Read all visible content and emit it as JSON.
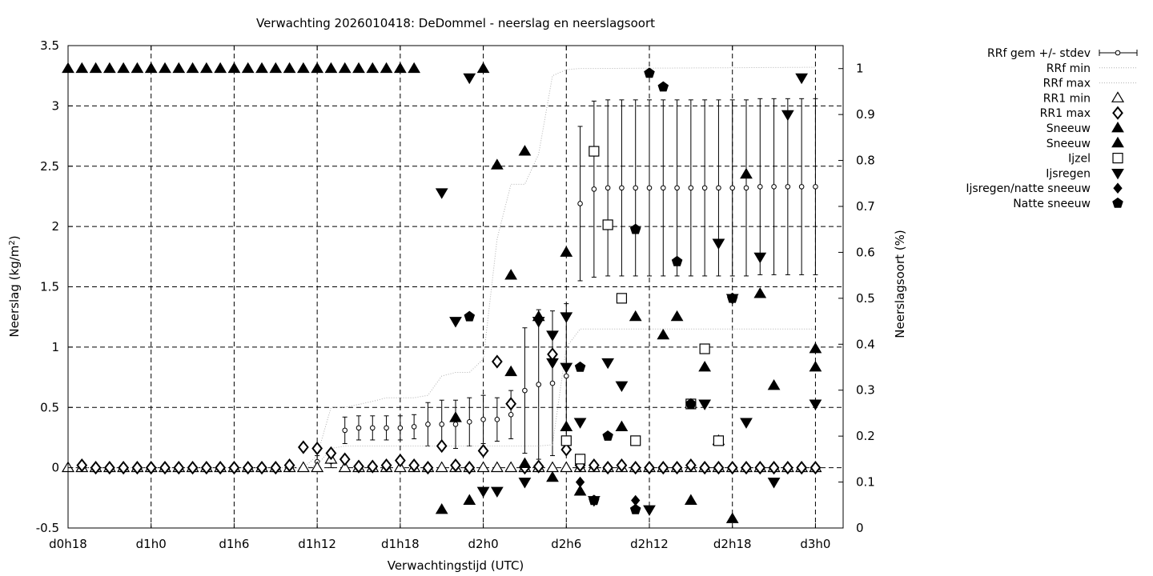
{
  "chart_data": {
    "type": "scatter",
    "title": "Verwachting 2026010418: DeDommel - neerslag en neerslagsoort",
    "xlabel": "Verwachtingstijd (UTC)",
    "ylabel": "Neerslag (kg/m",
    "ylabel_sup": "2",
    "ylabel_close": ")",
    "y2label": "Neerslagsoort (%)",
    "xlim": [
      18,
      74
    ],
    "ylim": [
      -0.5,
      3.5
    ],
    "y2lim": [
      0,
      1.05
    ],
    "grid": true,
    "legend_position": "outside-right",
    "x_ticks": [
      {
        "x": 18,
        "label": "d0h18"
      },
      {
        "x": 24,
        "label": "d1h0"
      },
      {
        "x": 30,
        "label": "d1h6"
      },
      {
        "x": 36,
        "label": "d1h12"
      },
      {
        "x": 42,
        "label": "d1h18"
      },
      {
        "x": 48,
        "label": "d2h0"
      },
      {
        "x": 54,
        "label": "d2h6"
      },
      {
        "x": 60,
        "label": "d2h12"
      },
      {
        "x": 66,
        "label": "d2h18"
      },
      {
        "x": 72,
        "label": "d3h0"
      }
    ],
    "y_ticks": [
      "-0.5",
      "0",
      "0.5",
      "1",
      "1.5",
      "2",
      "2.5",
      "3",
      "3.5"
    ],
    "y2_ticks": [
      "0",
      "0.1",
      "0.2",
      "0.3",
      "0.4",
      "0.5",
      "0.6",
      "0.7",
      "0.8",
      "0.9",
      "1"
    ],
    "series": [
      {
        "name": "RRf gem +/- stdev",
        "marker": "circle-errorbar",
        "axis": "y1",
        "x": [
          18,
          19,
          20,
          21,
          22,
          23,
          24,
          25,
          26,
          27,
          28,
          29,
          30,
          31,
          32,
          33,
          34,
          35,
          36,
          37,
          38,
          39,
          40,
          41,
          42,
          43,
          44,
          45,
          46,
          47,
          48,
          49,
          50,
          51,
          52,
          53,
          54,
          55,
          56,
          57,
          58,
          59,
          60,
          61,
          62,
          63,
          64,
          65,
          66,
          67,
          68,
          69,
          70,
          71,
          72
        ],
        "mean": [
          0,
          0,
          0,
          0,
          0,
          0,
          0,
          0,
          0,
          0,
          0,
          0,
          0,
          0,
          0,
          0,
          0,
          0,
          0.05,
          0.05,
          0.31,
          0.33,
          0.33,
          0.33,
          0.33,
          0.34,
          0.36,
          0.36,
          0.36,
          0.38,
          0.4,
          0.4,
          0.44,
          0.64,
          0.69,
          0.7,
          0.76,
          2.19,
          2.31,
          2.32,
          2.32,
          2.32,
          2.32,
          2.32,
          2.32,
          2.32,
          2.32,
          2.32,
          2.32,
          2.32,
          2.33,
          2.33,
          2.33,
          2.33,
          2.33
        ],
        "stdev": [
          0,
          0,
          0,
          0,
          0,
          0,
          0,
          0,
          0,
          0,
          0,
          0,
          0,
          0,
          0,
          0,
          0,
          0,
          0.05,
          0.05,
          0.11,
          0.1,
          0.1,
          0.1,
          0.1,
          0.1,
          0.18,
          0.2,
          0.2,
          0.2,
          0.2,
          0.18,
          0.2,
          0.52,
          0.62,
          0.6,
          0.6,
          0.64,
          0.73,
          0.73,
          0.73,
          0.73,
          0.73,
          0.73,
          0.73,
          0.73,
          0.73,
          0.73,
          0.73,
          0.73,
          0.73,
          0.73,
          0.73,
          0.73,
          0.73
        ]
      },
      {
        "name": "RRf min",
        "marker": "dotted-line",
        "axis": "y1",
        "x": [
          18,
          35,
          36,
          37,
          38,
          40,
          41,
          43,
          44,
          47,
          48,
          51,
          52,
          53,
          54,
          55,
          56,
          72
        ],
        "y": [
          0,
          0,
          0.02,
          0.16,
          0.18,
          0.18,
          0.18,
          0.18,
          0.18,
          0.18,
          0.18,
          0.18,
          0.18,
          0.19,
          1.0,
          1.15,
          1.15,
          1.15
        ]
      },
      {
        "name": "RRf max",
        "marker": "dotted-line",
        "axis": "y1",
        "x": [
          18,
          35,
          36,
          37,
          38,
          40,
          41,
          43,
          44,
          45,
          46,
          47,
          48,
          49,
          50,
          51,
          52,
          53,
          54,
          55,
          56,
          72
        ],
        "y": [
          0,
          0,
          0.1,
          0.5,
          0.5,
          0.55,
          0.58,
          0.58,
          0.6,
          0.76,
          0.79,
          0.79,
          0.9,
          1.9,
          2.35,
          2.35,
          2.6,
          3.25,
          3.3,
          3.31,
          3.31,
          3.32
        ]
      },
      {
        "name": "RR1 min",
        "marker": "open-triangle-up",
        "axis": "y1",
        "x": [
          18,
          19,
          20,
          21,
          22,
          23,
          24,
          25,
          26,
          27,
          28,
          29,
          30,
          31,
          32,
          33,
          34,
          35,
          36,
          37,
          38,
          39,
          40,
          41,
          42,
          43,
          44,
          45,
          46,
          47,
          48,
          49,
          50,
          51,
          52,
          53,
          54,
          55,
          56,
          57,
          58,
          59,
          60,
          61,
          62,
          63,
          64,
          65,
          66,
          67,
          68,
          69,
          70,
          71,
          72
        ],
        "y": [
          0,
          0,
          0,
          0,
          0,
          0,
          0,
          0,
          0,
          0,
          0,
          0,
          0,
          0,
          0,
          0,
          0,
          0,
          0,
          0.07,
          0,
          0,
          0,
          0,
          0,
          0,
          0,
          0,
          0,
          0,
          0,
          0,
          0,
          0,
          0,
          0,
          0,
          0,
          0,
          0,
          0,
          0,
          0,
          0,
          0,
          0,
          0,
          0,
          0,
          0,
          0,
          0,
          0,
          0,
          0
        ]
      },
      {
        "name": "RR1 max",
        "marker": "open-diamond",
        "axis": "y1",
        "x": [
          19,
          20,
          21,
          22,
          23,
          24,
          25,
          26,
          27,
          28,
          29,
          30,
          31,
          32,
          33,
          34,
          35,
          36,
          37,
          38,
          39,
          40,
          41,
          42,
          43,
          44,
          45,
          46,
          47,
          48,
          49,
          50,
          51,
          52,
          53,
          54,
          55,
          56,
          57,
          58,
          59,
          60,
          61,
          62,
          63,
          64,
          65,
          66,
          67,
          68,
          69,
          70,
          71,
          72
        ],
        "y": [
          0.02,
          0,
          0,
          0,
          0,
          0,
          0,
          0,
          0,
          0,
          0,
          0,
          0,
          0,
          0,
          0.02,
          0.17,
          0.16,
          0.12,
          0.07,
          0.01,
          0.01,
          0.02,
          0.06,
          0.02,
          0,
          0.18,
          0.02,
          0,
          0.14,
          0.88,
          0.53,
          0,
          0.01,
          0.94,
          0.15,
          0.02,
          0.02,
          0,
          0.02,
          0,
          0,
          0,
          0,
          0.02,
          0,
          0,
          0,
          0,
          0,
          0,
          0,
          0,
          0
        ]
      },
      {
        "name": "Sneeuw",
        "marker": "filled-triangle-up",
        "axis": "y2",
        "x": [
          18,
          19,
          20,
          21,
          22,
          23,
          24,
          25,
          26,
          27,
          28,
          29,
          30,
          31,
          32,
          33,
          34,
          35,
          36,
          37,
          38,
          39,
          40,
          41,
          42,
          43,
          48
        ],
        "y": [
          1,
          1,
          1,
          1,
          1,
          1,
          1,
          1,
          1,
          1,
          1,
          1,
          1,
          1,
          1,
          1,
          1,
          1,
          1,
          1,
          1,
          1,
          1,
          1,
          1,
          1,
          1
        ]
      },
      {
        "name": "Sneeuw",
        "marker": "filled-triangle-up",
        "axis": "y2",
        "x": [
          45,
          46,
          47,
          49,
          50,
          50,
          51,
          51,
          52,
          53,
          54,
          54,
          55,
          58,
          59,
          61,
          62,
          63,
          64,
          65,
          66,
          67,
          68,
          69,
          72,
          72
        ],
        "y": [
          0.04,
          0.24,
          0.06,
          0.79,
          0.55,
          0.34,
          0.82,
          0.14,
          0.46,
          0.11,
          0.6,
          0.22,
          0.08,
          0.22,
          0.46,
          0.42,
          0.46,
          0.06,
          0.35,
          0.19,
          0.02,
          0.77,
          0.51,
          0.31,
          0.39,
          0.35
        ]
      },
      {
        "name": "Ijzel",
        "marker": "open-square",
        "axis": "y2",
        "x": [
          54,
          55,
          56,
          57,
          58,
          59,
          63,
          64,
          65
        ],
        "y": [
          0.19,
          0.15,
          0.82,
          0.66,
          0.5,
          0.19,
          0.27,
          0.39,
          0.19
        ]
      },
      {
        "name": "Ijsregen",
        "marker": "filled-triangle-down",
        "axis": "y2",
        "x": [
          45,
          46,
          47,
          48,
          49,
          51,
          52,
          53,
          53,
          54,
          54,
          55,
          56,
          57,
          58,
          60,
          64,
          65,
          66,
          67,
          68,
          69,
          70,
          71,
          72
        ],
        "y": [
          0.73,
          0.45,
          0.98,
          0.08,
          0.08,
          0.1,
          0.45,
          0.42,
          0.36,
          0.46,
          0.35,
          0.23,
          0.06,
          0.36,
          0.31,
          0.04,
          0.27,
          0.62,
          0.5,
          0.23,
          0.59,
          0.1,
          0.9,
          0.98,
          0.27
        ]
      },
      {
        "name": "Ijsregen/natte sneeuw",
        "marker": "filled-diamond",
        "axis": "y2",
        "x": [
          55,
          56,
          59
        ],
        "y": [
          0.1,
          0.06,
          0.06
        ]
      },
      {
        "name": "Natte sneeuw",
        "marker": "filled-pentagon",
        "axis": "y2",
        "x": [
          47,
          55,
          56,
          57,
          59,
          59,
          60,
          61,
          62,
          63,
          66
        ],
        "y": [
          0.46,
          0.35,
          0.06,
          0.2,
          0.65,
          0.04,
          0.99,
          0.96,
          0.58,
          0.27,
          0.5
        ]
      }
    ]
  }
}
